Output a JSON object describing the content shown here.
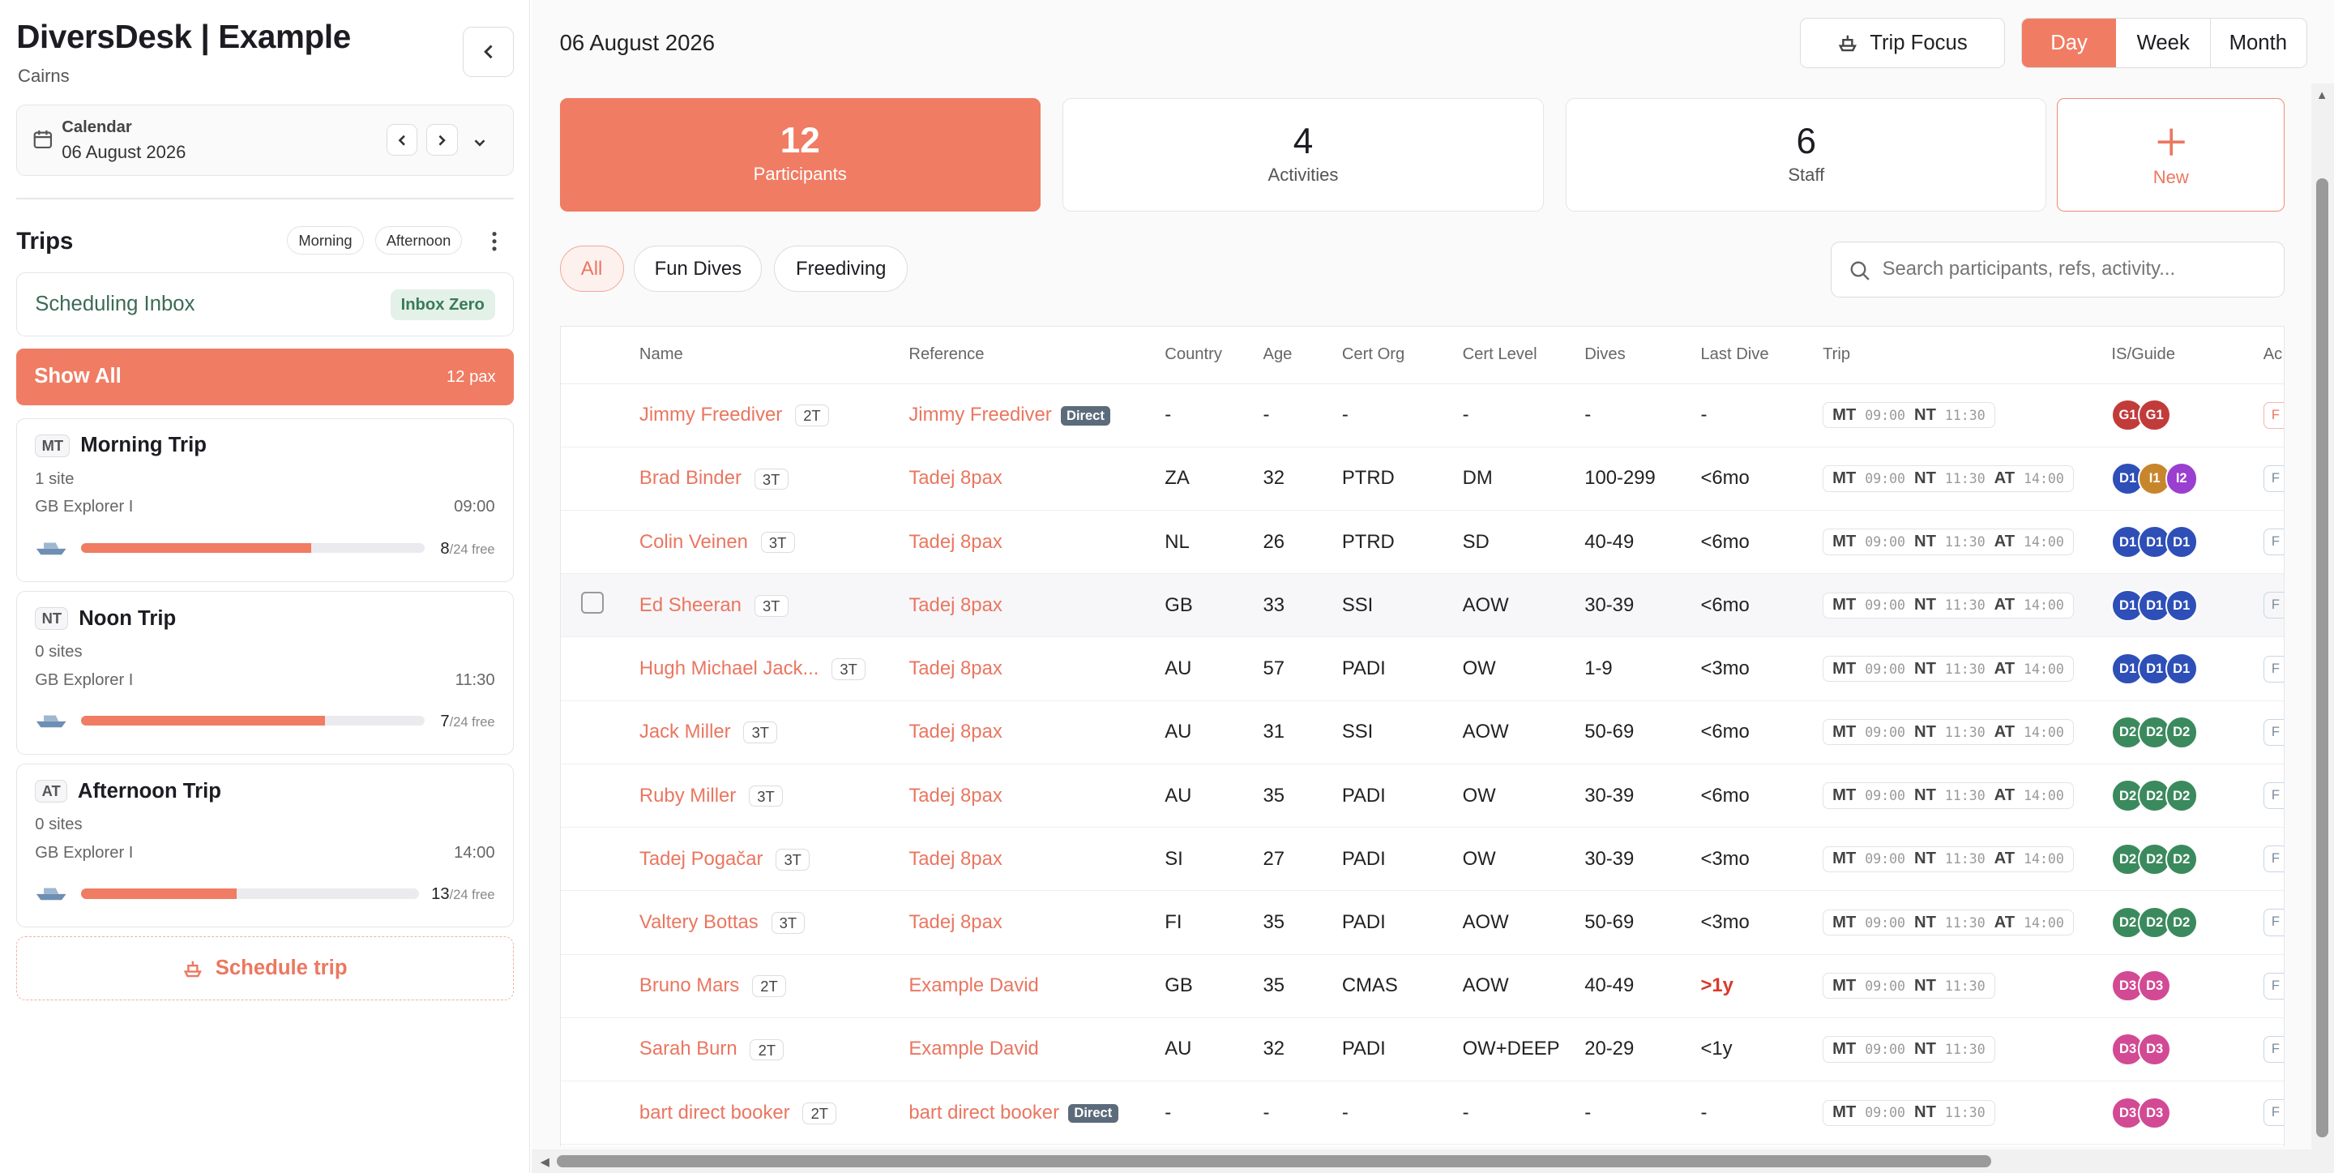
{
  "sidebar": {
    "title": "DiversDesk | Example",
    "location": "Cairns",
    "calendar": {
      "label": "Calendar",
      "date": "06 August 2026"
    },
    "trips_heading": "Trips",
    "filters": [
      "Morning",
      "Afternoon"
    ],
    "inbox": {
      "label": "Scheduling Inbox",
      "badge": "Inbox Zero"
    },
    "show_all": {
      "label": "Show All",
      "count": "12 pax"
    },
    "trips": [
      {
        "abbr": "MT",
        "name": "Morning Trip",
        "sites": "1 site",
        "boat": "GB Explorer I",
        "time": "09:00",
        "count": "8",
        "free": "/24 free",
        "fill": 0.67
      },
      {
        "abbr": "NT",
        "name": "Noon Trip",
        "sites": "0 sites",
        "boat": "GB Explorer I",
        "time": "11:30",
        "count": "7",
        "free": "/24 free",
        "fill": 0.71
      },
      {
        "abbr": "AT",
        "name": "Afternoon Trip",
        "sites": "0 sites",
        "boat": "GB Explorer I",
        "time": "14:00",
        "count": "13",
        "free": "/24 free",
        "fill": 0.46
      }
    ],
    "schedule_btn": "Schedule trip"
  },
  "header": {
    "date": "06 August 2026",
    "trip_focus": "Trip Focus",
    "views": [
      "Day",
      "Week",
      "Month"
    ]
  },
  "stats": [
    {
      "value": "12",
      "label": "Participants"
    },
    {
      "value": "4",
      "label": "Activities"
    },
    {
      "value": "6",
      "label": "Staff"
    }
  ],
  "new_btn": "New",
  "tabs": [
    "All",
    "Fun Dives",
    "Freediving"
  ],
  "search": {
    "placeholder": "Search participants, refs, activity..."
  },
  "table": {
    "columns": [
      "Name",
      "Reference",
      "Country",
      "Age",
      "Cert Org",
      "Cert Level",
      "Dives",
      "Last Dive",
      "Trip",
      "IS/Guide",
      "Ac"
    ],
    "rows": [
      {
        "name": "Jimmy Freediver",
        "tag": "2T",
        "ref": "Jimmy Freediver",
        "direct": "Direct",
        "country": "-",
        "age": "-",
        "org": "-",
        "level": "-",
        "dives": "-",
        "last": "-",
        "trips": [
          [
            "MT",
            "09:00"
          ],
          [
            "NT",
            "11:30"
          ]
        ],
        "guides": [
          [
            "G1",
            "#c23b3b"
          ],
          [
            "G1",
            "#c23b3b"
          ]
        ],
        "ac": "F"
      },
      {
        "name": "Brad Binder",
        "tag": "3T",
        "ref": "Tadej 8pax",
        "direct": "",
        "country": "ZA",
        "age": "32",
        "org": "PTRD",
        "level": "DM",
        "dives": "100-299",
        "last": "<6mo",
        "trips": [
          [
            "MT",
            "09:00"
          ],
          [
            "NT",
            "11:30"
          ],
          [
            "AT",
            "14:00"
          ]
        ],
        "guides": [
          [
            "D1",
            "#2e4fb8"
          ],
          [
            "I1",
            "#c8862c"
          ],
          [
            "I2",
            "#9a3fd0"
          ]
        ],
        "ac": "F"
      },
      {
        "name": "Colin Veinen",
        "tag": "3T",
        "ref": "Tadej 8pax",
        "direct": "",
        "country": "NL",
        "age": "26",
        "org": "PTRD",
        "level": "SD",
        "dives": "40-49",
        "last": "<6mo",
        "trips": [
          [
            "MT",
            "09:00"
          ],
          [
            "NT",
            "11:30"
          ],
          [
            "AT",
            "14:00"
          ]
        ],
        "guides": [
          [
            "D1",
            "#2e4fb8"
          ],
          [
            "D1",
            "#2e4fb8"
          ],
          [
            "D1",
            "#2e4fb8"
          ]
        ],
        "ac": "F"
      },
      {
        "name": "Ed Sheeran",
        "tag": "3T",
        "ref": "Tadej 8pax",
        "direct": "",
        "country": "GB",
        "age": "33",
        "org": "SSI",
        "level": "AOW",
        "dives": "30-39",
        "last": "<6mo",
        "trips": [
          [
            "MT",
            "09:00"
          ],
          [
            "NT",
            "11:30"
          ],
          [
            "AT",
            "14:00"
          ]
        ],
        "guides": [
          [
            "D1",
            "#2e4fb8"
          ],
          [
            "D1",
            "#2e4fb8"
          ],
          [
            "D1",
            "#2e4fb8"
          ]
        ],
        "ac": "F"
      },
      {
        "name": "Hugh Michael Jack...",
        "tag": "3T",
        "ref": "Tadej 8pax",
        "direct": "",
        "country": "AU",
        "age": "57",
        "org": "PADI",
        "level": "OW",
        "dives": "1-9",
        "last": "<3mo",
        "trips": [
          [
            "MT",
            "09:00"
          ],
          [
            "NT",
            "11:30"
          ],
          [
            "AT",
            "14:00"
          ]
        ],
        "guides": [
          [
            "D1",
            "#2e4fb8"
          ],
          [
            "D1",
            "#2e4fb8"
          ],
          [
            "D1",
            "#2e4fb8"
          ]
        ],
        "ac": "F"
      },
      {
        "name": "Jack Miller",
        "tag": "3T",
        "ref": "Tadej 8pax",
        "direct": "",
        "country": "AU",
        "age": "31",
        "org": "SSI",
        "level": "AOW",
        "dives": "50-69",
        "last": "<6mo",
        "trips": [
          [
            "MT",
            "09:00"
          ],
          [
            "NT",
            "11:30"
          ],
          [
            "AT",
            "14:00"
          ]
        ],
        "guides": [
          [
            "D2",
            "#3b8a5e"
          ],
          [
            "D2",
            "#3b8a5e"
          ],
          [
            "D2",
            "#3b8a5e"
          ]
        ],
        "ac": "F"
      },
      {
        "name": "Ruby Miller",
        "tag": "3T",
        "ref": "Tadej 8pax",
        "direct": "",
        "country": "AU",
        "age": "35",
        "org": "PADI",
        "level": "OW",
        "dives": "30-39",
        "last": "<6mo",
        "trips": [
          [
            "MT",
            "09:00"
          ],
          [
            "NT",
            "11:30"
          ],
          [
            "AT",
            "14:00"
          ]
        ],
        "guides": [
          [
            "D2",
            "#3b8a5e"
          ],
          [
            "D2",
            "#3b8a5e"
          ],
          [
            "D2",
            "#3b8a5e"
          ]
        ],
        "ac": "F"
      },
      {
        "name": "Tadej Pogačar",
        "tag": "3T",
        "ref": "Tadej 8pax",
        "direct": "",
        "country": "SI",
        "age": "27",
        "org": "PADI",
        "level": "OW",
        "dives": "30-39",
        "last": "<3mo",
        "trips": [
          [
            "MT",
            "09:00"
          ],
          [
            "NT",
            "11:30"
          ],
          [
            "AT",
            "14:00"
          ]
        ],
        "guides": [
          [
            "D2",
            "#3b8a5e"
          ],
          [
            "D2",
            "#3b8a5e"
          ],
          [
            "D2",
            "#3b8a5e"
          ]
        ],
        "ac": "F"
      },
      {
        "name": "Valtery Bottas",
        "tag": "3T",
        "ref": "Tadej 8pax",
        "direct": "",
        "country": "FI",
        "age": "35",
        "org": "PADI",
        "level": "AOW",
        "dives": "50-69",
        "last": "<3mo",
        "trips": [
          [
            "MT",
            "09:00"
          ],
          [
            "NT",
            "11:30"
          ],
          [
            "AT",
            "14:00"
          ]
        ],
        "guides": [
          [
            "D2",
            "#3b8a5e"
          ],
          [
            "D2",
            "#3b8a5e"
          ],
          [
            "D2",
            "#3b8a5e"
          ]
        ],
        "ac": "F"
      },
      {
        "name": "Bruno Mars",
        "tag": "2T",
        "ref": "Example David",
        "direct": "",
        "country": "GB",
        "age": "35",
        "org": "CMAS",
        "level": "AOW",
        "dives": "40-49",
        "last": ">1y",
        "lastRed": true,
        "trips": [
          [
            "MT",
            "09:00"
          ],
          [
            "NT",
            "11:30"
          ]
        ],
        "guides": [
          [
            "D3",
            "#d24a93"
          ],
          [
            "D3",
            "#d24a93"
          ]
        ],
        "ac": "F"
      },
      {
        "name": "Sarah Burn",
        "tag": "2T",
        "ref": "Example David",
        "direct": "",
        "country": "AU",
        "age": "32",
        "org": "PADI",
        "level": "OW+DEEP",
        "dives": "20-29",
        "last": "<1y",
        "trips": [
          [
            "MT",
            "09:00"
          ],
          [
            "NT",
            "11:30"
          ]
        ],
        "guides": [
          [
            "D3",
            "#d24a93"
          ],
          [
            "D3",
            "#d24a93"
          ]
        ],
        "ac": "F"
      },
      {
        "name": "bart direct booker",
        "tag": "2T",
        "ref": "bart direct booker",
        "direct": "Direct",
        "country": "-",
        "age": "-",
        "org": "-",
        "level": "-",
        "dives": "-",
        "last": "-",
        "trips": [
          [
            "MT",
            "09:00"
          ],
          [
            "NT",
            "11:30"
          ]
        ],
        "guides": [
          [
            "D3",
            "#d24a93"
          ],
          [
            "D3",
            "#d24a93"
          ]
        ],
        "ac": "F"
      }
    ]
  }
}
